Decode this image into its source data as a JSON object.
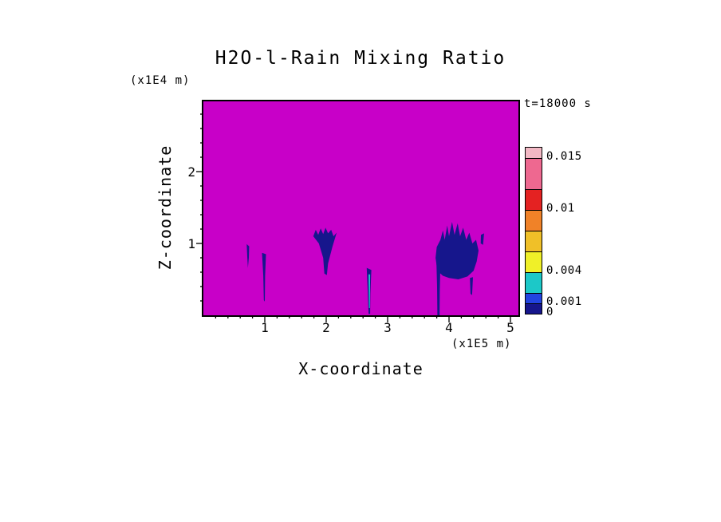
{
  "figure": {
    "title": "H2O-l-Rain Mixing Ratio",
    "time_label": "t=18000 s"
  },
  "axes": {
    "x_label": "X-coordinate",
    "x_unit_label": "(x1E5 m)",
    "x_tick_labels": [
      "1",
      "2",
      "3",
      "4",
      "5"
    ],
    "z_label": "Z-coordinate",
    "z_unit_label": "(x1E4 m)",
    "z_tick_labels": [
      "2",
      "1"
    ]
  },
  "colorbar": {
    "segments": [
      {
        "range": "> 0.015",
        "from": 0.015,
        "to": 0.016,
        "color": "#F2B8C4"
      },
      {
        "range": "0.012 - 0.015",
        "from": 0.012,
        "to": 0.015,
        "color": "#EE6890"
      },
      {
        "range": "0.010 - 0.012",
        "from": 0.01,
        "to": 0.012,
        "color": "#E42222"
      },
      {
        "range": "0.008 - 0.010",
        "from": 0.008,
        "to": 0.01,
        "color": "#F08228"
      },
      {
        "range": "0.006 - 0.008",
        "from": 0.006,
        "to": 0.008,
        "color": "#F0C028"
      },
      {
        "range": "0.004 - 0.006",
        "from": 0.004,
        "to": 0.006,
        "color": "#F0F028"
      },
      {
        "range": "0.002 - 0.004",
        "from": 0.002,
        "to": 0.004,
        "color": "#1CC8C8"
      },
      {
        "range": "0.001 - 0.002",
        "from": 0.001,
        "to": 0.002,
        "color": "#2244E0"
      },
      {
        "range": "0 - 0.001",
        "from": 0.0,
        "to": 0.001,
        "color": "#16168C"
      }
    ],
    "tick_labels": [
      {
        "text": "0.015",
        "value": 0.015
      },
      {
        "text": "0.01",
        "value": 0.01
      },
      {
        "text": "0.004",
        "value": 0.004
      },
      {
        "text": "0.001",
        "value": 0.001
      },
      {
        "text": "0",
        "value": 0.0
      }
    ]
  },
  "chart_data": {
    "type": "heatmap",
    "title": "H2O-l-Rain Mixing Ratio",
    "time_annotation": "t=18000 s",
    "xlabel": "X-coordinate",
    "x_unit": "(x1E5 m)",
    "xlim": [
      0,
      5.15
    ],
    "x_tick_values": [
      1,
      2,
      3,
      4,
      5
    ],
    "zlabel": "Z-coordinate",
    "z_unit": "(x1E4 m)",
    "zlim": [
      0,
      3.0
    ],
    "z_tick_values": [
      1,
      2
    ],
    "minor_tick_step": 0.2,
    "levels": [
      0,
      0.001,
      0.002,
      0.004,
      0.006,
      0.008,
      0.01,
      0.012,
      0.015
    ],
    "level_colors": [
      "#16168C",
      "#2244E0",
      "#1CC8C8",
      "#F0F028",
      "#F0C028",
      "#F08228",
      "#E42222",
      "#EE6890",
      "#F2B8C4"
    ],
    "background_value": 0,
    "background_color": "#C800C8",
    "features": [
      {
        "id": "streak-a",
        "value_range": "0-0.001",
        "color": "#16168C",
        "outline": [
          [
            0.705,
            0.99
          ],
          [
            0.745,
            0.96
          ],
          [
            0.74,
            0.8
          ],
          [
            0.725,
            0.66
          ],
          [
            0.715,
            0.8
          ]
        ]
      },
      {
        "id": "streak-b",
        "value_range": "0-0.001",
        "color": "#16168C",
        "outline": [
          [
            0.955,
            0.87
          ],
          [
            1.02,
            0.85
          ],
          [
            1.005,
            0.55
          ],
          [
            1.0,
            0.19
          ],
          [
            0.985,
            0.21
          ],
          [
            0.975,
            0.55
          ]
        ]
      },
      {
        "id": "plume-c",
        "value_range": "0-0.001",
        "color": "#16168C",
        "outline": [
          [
            1.79,
            1.1
          ],
          [
            1.83,
            1.19
          ],
          [
            1.87,
            1.12
          ],
          [
            1.91,
            1.21
          ],
          [
            1.95,
            1.13
          ],
          [
            1.99,
            1.22
          ],
          [
            2.03,
            1.14
          ],
          [
            2.08,
            1.19
          ],
          [
            2.12,
            1.1
          ],
          [
            2.17,
            1.15
          ],
          [
            2.1,
            0.95
          ],
          [
            2.03,
            0.72
          ],
          [
            2.01,
            0.56
          ],
          [
            1.97,
            0.58
          ],
          [
            1.95,
            0.8
          ],
          [
            1.88,
            1.0
          ]
        ]
      },
      {
        "id": "streak-d-outer",
        "value_range": "0-0.001",
        "color": "#16168C",
        "outline": [
          [
            2.66,
            0.66
          ],
          [
            2.735,
            0.63
          ],
          [
            2.72,
            0.3
          ],
          [
            2.715,
            0.02
          ],
          [
            2.69,
            0.02
          ],
          [
            2.675,
            0.35
          ]
        ]
      },
      {
        "id": "streak-d-core",
        "value_range": "0.002-0.004",
        "color": "#1CC8C8",
        "outline": [
          [
            2.69,
            0.57
          ],
          [
            2.715,
            0.57
          ],
          [
            2.71,
            0.1
          ],
          [
            2.697,
            0.1
          ]
        ]
      },
      {
        "id": "streak-e",
        "value_range": "0-0.001",
        "color": "#16168C",
        "outline": [
          [
            3.795,
            0.74
          ],
          [
            3.86,
            0.71
          ],
          [
            3.85,
            0.35
          ],
          [
            3.845,
            0.0
          ],
          [
            3.81,
            0.0
          ],
          [
            3.805,
            0.4
          ]
        ]
      },
      {
        "id": "plume-f",
        "value_range": "0-0.001",
        "color": "#16168C",
        "outline": [
          [
            3.81,
            0.62
          ],
          [
            3.78,
            0.8
          ],
          [
            3.8,
            0.95
          ],
          [
            3.86,
            1.05
          ],
          [
            3.9,
            1.18
          ],
          [
            3.93,
            1.05
          ],
          [
            3.97,
            1.25
          ],
          [
            4.0,
            1.1
          ],
          [
            4.05,
            1.3
          ],
          [
            4.09,
            1.12
          ],
          [
            4.14,
            1.28
          ],
          [
            4.18,
            1.1
          ],
          [
            4.23,
            1.22
          ],
          [
            4.28,
            1.05
          ],
          [
            4.33,
            1.15
          ],
          [
            4.38,
            1.0
          ],
          [
            4.44,
            1.05
          ],
          [
            4.48,
            0.9
          ],
          [
            4.45,
            0.75
          ],
          [
            4.4,
            0.62
          ],
          [
            4.3,
            0.54
          ],
          [
            4.15,
            0.5
          ],
          [
            4.0,
            0.52
          ],
          [
            3.9,
            0.55
          ]
        ]
      },
      {
        "id": "fringe-g",
        "value_range": "0-0.001",
        "color": "#16168C",
        "outline": [
          [
            4.52,
            1.12
          ],
          [
            4.57,
            1.14
          ],
          [
            4.555,
            0.98
          ],
          [
            4.515,
            1.0
          ]
        ]
      },
      {
        "id": "tail-h",
        "value_range": "0-0.001",
        "color": "#16168C",
        "outline": [
          [
            4.34,
            0.52
          ],
          [
            4.39,
            0.53
          ],
          [
            4.375,
            0.28
          ],
          [
            4.35,
            0.3
          ]
        ]
      }
    ]
  }
}
